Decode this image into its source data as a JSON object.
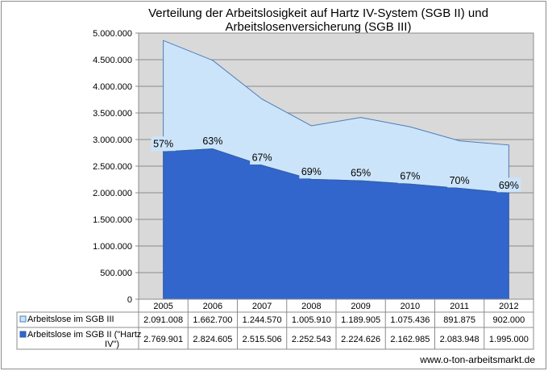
{
  "chart_data": {
    "type": "area",
    "stacked": true,
    "title_line1": "Verteilung der Arbeitslosigkeit auf Hartz IV-System (SGB II) und",
    "title_line2": "Arbeitslosenversicherung (SGB III)",
    "categories": [
      "2005",
      "2006",
      "2007",
      "2008",
      "2009",
      "2010",
      "2011",
      "2012"
    ],
    "ylim": [
      0,
      5000000
    ],
    "yticks": [
      0,
      500000,
      1000000,
      1500000,
      2000000,
      2500000,
      3000000,
      3500000,
      4000000,
      4500000,
      5000000
    ],
    "ytick_labels": [
      "0",
      "500.000",
      "1.000.000",
      "1.500.000",
      "2.000.000",
      "2.500.000",
      "3.000.000",
      "3.500.000",
      "4.000.000",
      "4.500.000",
      "5.000.000"
    ],
    "grid": true,
    "series": [
      {
        "name": "Arbeitslose im SGB II (\"Hartz IV\")",
        "color": "#3366cc",
        "values": [
          2769901,
          2824605,
          2515506,
          2252543,
          2224626,
          2162985,
          2083948,
          1995000
        ],
        "value_labels": [
          "2.769.901",
          "2.824.605",
          "2.515.506",
          "2.252.543",
          "2.224.626",
          "2.162.985",
          "2.083.948",
          "1.995.000"
        ]
      },
      {
        "name": "Arbeitslose im SGB III",
        "color": "#cce4fa",
        "values": [
          2091008,
          1662700,
          1244570,
          1005910,
          1189905,
          1075436,
          891875,
          902000
        ],
        "value_labels": [
          "2.091.008",
          "1.662.700",
          "1.244.570",
          "1.005.910",
          "1.189.905",
          "1.075.436",
          "891.875",
          "902.000"
        ]
      }
    ],
    "percent_labels": [
      "57%",
      "63%",
      "67%",
      "69%",
      "65%",
      "67%",
      "70%",
      "69%"
    ],
    "data_table": true
  },
  "source": "www.o-ton-arbeitsmarkt.de"
}
